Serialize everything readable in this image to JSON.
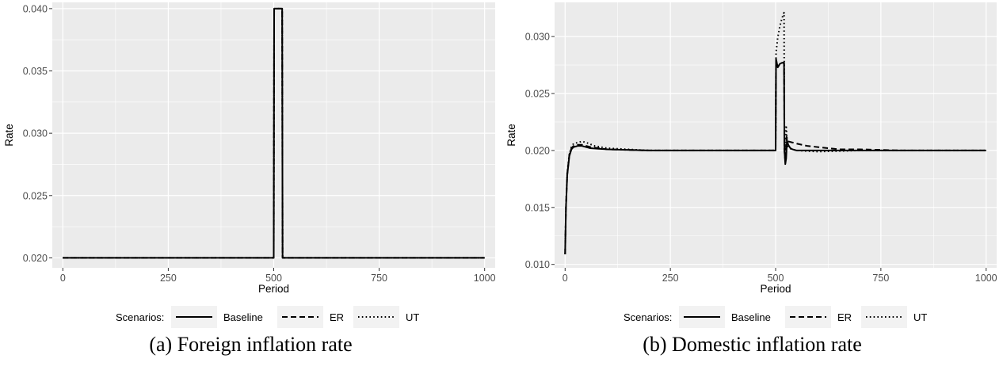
{
  "legend": {
    "title": "Scenarios:",
    "items": [
      {
        "label": "Baseline",
        "dash": "solid"
      },
      {
        "label": "ER",
        "dash": "dashed"
      },
      {
        "label": "UT",
        "dash": "dotted"
      }
    ]
  },
  "chart_data": [
    {
      "type": "line",
      "caption": "(a) Foreign inflation rate",
      "xlabel": "Period",
      "ylabel": "Rate",
      "xlim": [
        -25,
        1025
      ],
      "ylim": [
        0.0192,
        0.0405
      ],
      "xticks": [
        0,
        250,
        500,
        750,
        1000
      ],
      "xtick_labels": [
        "0",
        "250",
        "500",
        "750",
        "1000"
      ],
      "yticks": [
        0.02,
        0.025,
        0.03,
        0.035,
        0.04
      ],
      "ytick_labels": [
        "0.020",
        "0.025",
        "0.030",
        "0.035",
        "0.040"
      ],
      "grid": true,
      "legend_position": "bottom",
      "series": [
        {
          "name": "Baseline",
          "dash": "solid",
          "x": [
            0,
            500,
            501,
            520,
            521,
            1000
          ],
          "y": [
            0.02,
            0.02,
            0.04,
            0.04,
            0.02,
            0.02
          ]
        },
        {
          "name": "ER",
          "dash": "dashed",
          "x": [
            0,
            500,
            501,
            520,
            521,
            1000
          ],
          "y": [
            0.02,
            0.02,
            0.04,
            0.04,
            0.02,
            0.02
          ]
        },
        {
          "name": "UT",
          "dash": "dotted",
          "x": [
            0,
            500,
            501,
            520,
            521,
            1000
          ],
          "y": [
            0.02,
            0.02,
            0.04,
            0.04,
            0.02,
            0.02
          ]
        }
      ]
    },
    {
      "type": "line",
      "caption": "(b) Domestic inflation rate",
      "xlabel": "Period",
      "ylabel": "Rate",
      "xlim": [
        -25,
        1025
      ],
      "ylim": [
        0.0097,
        0.033
      ],
      "xticks": [
        0,
        250,
        500,
        750,
        1000
      ],
      "xtick_labels": [
        "0",
        "250",
        "500",
        "750",
        "1000"
      ],
      "yticks": [
        0.01,
        0.015,
        0.02,
        0.025,
        0.03
      ],
      "ytick_labels": [
        "0.010",
        "0.015",
        "0.020",
        "0.025",
        "0.030"
      ],
      "grid": true,
      "legend_position": "bottom",
      "series": [
        {
          "name": "Baseline",
          "dash": "solid",
          "x": [
            0,
            2,
            5,
            10,
            15,
            20,
            30,
            40,
            60,
            100,
            200,
            300,
            400,
            500,
            501,
            505,
            510,
            515,
            520,
            521,
            523,
            525,
            527,
            530,
            535,
            540,
            550,
            600,
            700,
            800,
            900,
            1000
          ],
          "y": [
            0.0109,
            0.015,
            0.0178,
            0.0195,
            0.0201,
            0.0203,
            0.0204,
            0.0204,
            0.0202,
            0.0201,
            0.02,
            0.02,
            0.02,
            0.02,
            0.028,
            0.0273,
            0.0276,
            0.0277,
            0.0277,
            0.02,
            0.0188,
            0.0193,
            0.0209,
            0.0205,
            0.0202,
            0.0201,
            0.02,
            0.02,
            0.02,
            0.02,
            0.02,
            0.02
          ]
        },
        {
          "name": "ER",
          "dash": "dashed",
          "x": [
            0,
            2,
            5,
            10,
            15,
            20,
            30,
            40,
            60,
            100,
            200,
            300,
            400,
            500,
            501,
            505,
            510,
            515,
            520,
            521,
            523,
            526,
            530,
            540,
            550,
            575,
            600,
            650,
            700,
            800,
            900,
            1000
          ],
          "y": [
            0.0109,
            0.015,
            0.0179,
            0.0196,
            0.0202,
            0.0204,
            0.0205,
            0.0205,
            0.0203,
            0.0201,
            0.02,
            0.02,
            0.02,
            0.02,
            0.028,
            0.0273,
            0.0276,
            0.0277,
            0.0277,
            0.02,
            0.019,
            0.0212,
            0.0208,
            0.0207,
            0.0206,
            0.0204,
            0.0203,
            0.0201,
            0.0201,
            0.02,
            0.02,
            0.02
          ]
        },
        {
          "name": "UT",
          "dash": "dotted",
          "x": [
            0,
            2,
            5,
            10,
            15,
            20,
            30,
            40,
            50,
            70,
            100,
            200,
            300,
            400,
            500,
            501,
            505,
            510,
            515,
            520,
            521,
            523,
            525,
            528,
            532,
            540,
            550,
            600,
            700,
            800,
            900,
            1000
          ],
          "y": [
            0.0109,
            0.0152,
            0.018,
            0.0197,
            0.0203,
            0.0206,
            0.0207,
            0.0208,
            0.0207,
            0.0204,
            0.0202,
            0.02,
            0.02,
            0.02,
            0.02,
            0.0286,
            0.0299,
            0.0309,
            0.0316,
            0.0321,
            0.02,
            0.0196,
            0.0222,
            0.0204,
            0.0202,
            0.0201,
            0.02,
            0.0199,
            0.02,
            0.02,
            0.02,
            0.02
          ]
        }
      ]
    }
  ]
}
